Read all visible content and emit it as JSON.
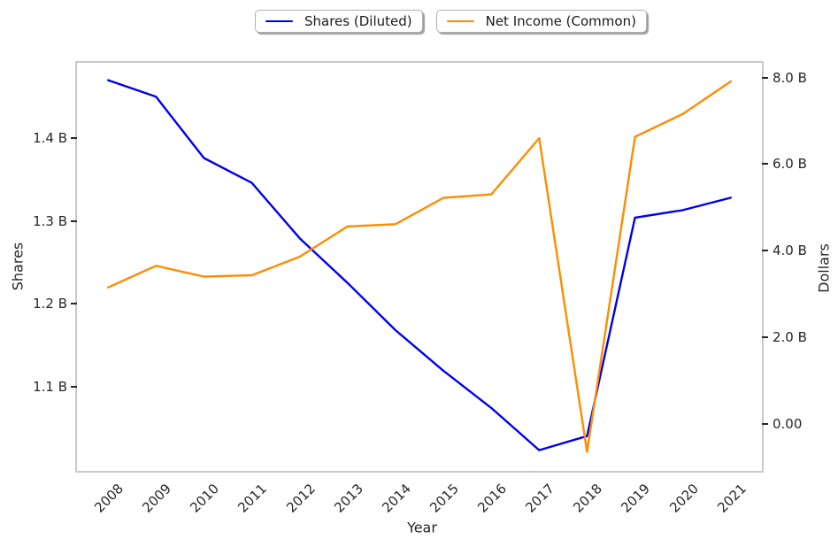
{
  "legend": {
    "items": [
      {
        "label": "Shares (Diluted)",
        "color": "#0000ee"
      },
      {
        "label": "Net Income (Common)",
        "color": "#ff8c00"
      }
    ]
  },
  "chart_data": {
    "type": "line",
    "title": "",
    "xlabel": "Year",
    "ylabel_left": "Shares",
    "ylabel_right": "Dollars",
    "x": [
      2008,
      2009,
      2010,
      2011,
      2012,
      2013,
      2014,
      2015,
      2016,
      2017,
      2018,
      2019,
      2020,
      2021
    ],
    "series": [
      {
        "name": "Shares (Diluted)",
        "axis": "left",
        "color": "#0000ee",
        "unit": "billions of shares",
        "values": [
          1.47,
          1.45,
          1.376,
          1.346,
          1.279,
          1.225,
          1.168,
          1.119,
          1.074,
          1.023,
          1.04,
          1.304,
          1.313,
          1.328
        ]
      },
      {
        "name": "Net Income (Common)",
        "axis": "right",
        "color": "#ff8c00",
        "unit": "billions of dollars",
        "values": [
          3.15,
          3.65,
          3.4,
          3.43,
          3.86,
          4.56,
          4.61,
          5.22,
          5.3,
          6.6,
          -0.65,
          6.63,
          7.16,
          7.91
        ]
      }
    ],
    "axes": {
      "x": {
        "lim": [
          2007.35,
          2021.65
        ],
        "ticks": [
          2008,
          2009,
          2010,
          2011,
          2012,
          2013,
          2014,
          2015,
          2016,
          2017,
          2018,
          2019,
          2020,
          2021
        ],
        "tick_rotation_deg": 45
      },
      "left": {
        "lim": [
          0.998,
          1.491
        ],
        "ticks": [
          {
            "value": 1.1,
            "label": "1.1 B"
          },
          {
            "value": 1.2,
            "label": "1.2 B"
          },
          {
            "value": 1.3,
            "label": "1.3 B"
          },
          {
            "value": 1.4,
            "label": "1.4 B"
          }
        ]
      },
      "right": {
        "lim": [
          -1.09,
          8.34
        ],
        "ticks": [
          {
            "value": 0,
            "label": "0.00"
          },
          {
            "value": 2,
            "label": "2.0 B"
          },
          {
            "value": 4,
            "label": "4.0 B"
          },
          {
            "value": 6,
            "label": "6.0 B"
          },
          {
            "value": 8,
            "label": "8.0 B"
          }
        ]
      }
    },
    "grid": false,
    "legend_position": "top-center"
  }
}
